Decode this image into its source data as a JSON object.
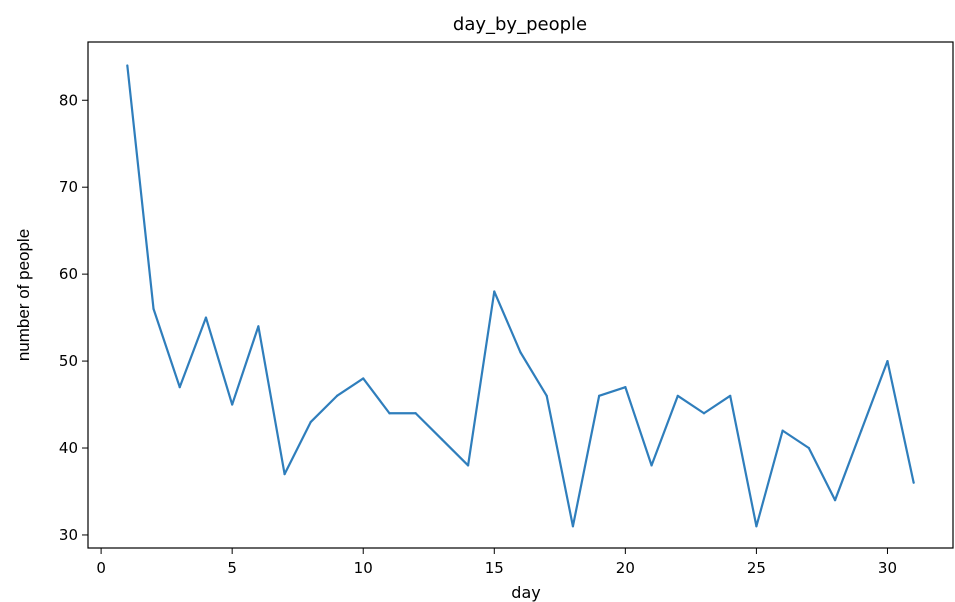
{
  "chart_data": {
    "type": "line",
    "title": "day_by_people",
    "xlabel": "day",
    "ylabel": "number of people",
    "xlim": [
      -0.5,
      32.5
    ],
    "ylim": [
      28.5,
      86.7
    ],
    "xticks": [
      0,
      5,
      10,
      15,
      20,
      25,
      30
    ],
    "yticks": [
      30,
      40,
      50,
      60,
      70,
      80
    ],
    "grid": false,
    "color": "#2f7ebc",
    "series": [
      {
        "x": [
          1,
          2,
          3,
          4,
          5,
          6,
          7,
          8,
          9,
          10,
          11,
          12,
          13,
          14,
          15,
          16,
          17,
          18,
          19,
          20,
          21,
          22,
          23,
          24,
          25,
          26,
          27,
          28,
          29,
          30,
          31
        ],
        "values": [
          84,
          56,
          47,
          55,
          45,
          54,
          37,
          43,
          46,
          48,
          44,
          44,
          41,
          38,
          58,
          51,
          46,
          31,
          46,
          47,
          38,
          46,
          44,
          46,
          31,
          42,
          40,
          34,
          42,
          50,
          36
        ]
      }
    ]
  }
}
